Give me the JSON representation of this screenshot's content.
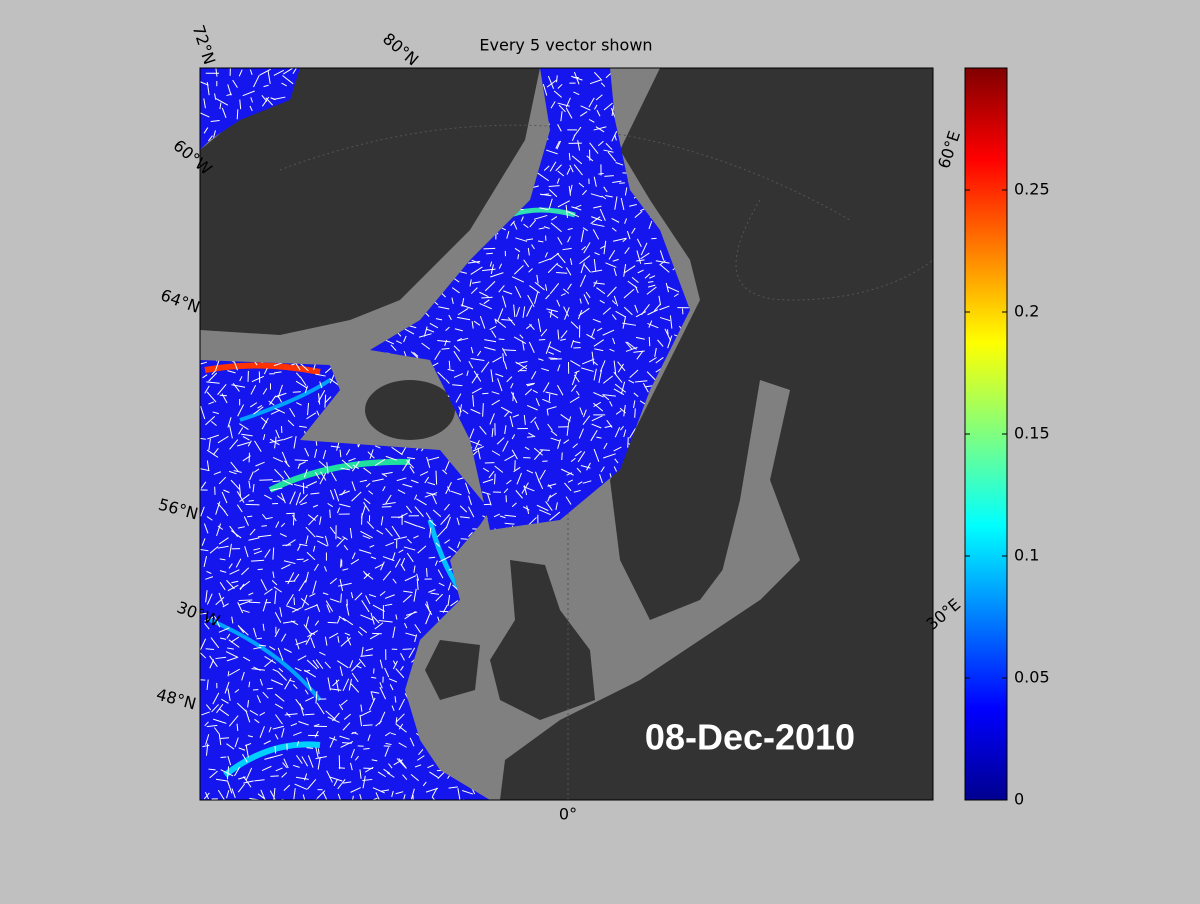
{
  "title": "Every 5 vector shown",
  "date_label": "08-Dec-2010",
  "graticule_labels": [
    "72°N",
    "80°N",
    "60°W",
    "64°N",
    "56°N",
    "30°W",
    "48°N",
    "0°",
    "30°E",
    "60°E"
  ],
  "colorbar": {
    "lim": [
      0,
      0.3
    ],
    "ticks": [
      0,
      0.05,
      0.1,
      0.15,
      0.2,
      0.25
    ]
  }
}
